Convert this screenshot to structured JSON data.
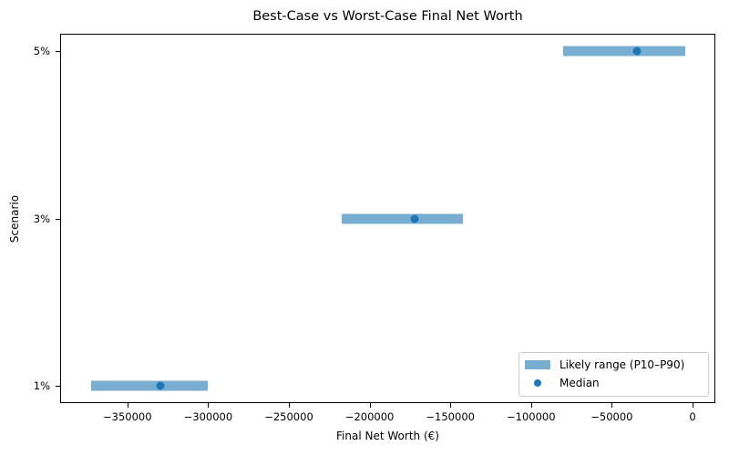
{
  "chart_data": {
    "type": "range",
    "title": "Best-Case vs Worst-Case Final Net Worth",
    "xlabel": "Final Net Worth (€)",
    "ylabel": "Scenario",
    "xlim": [
      -390000,
      14000
    ],
    "x_ticks": [
      -350000,
      -300000,
      -250000,
      -200000,
      -150000,
      -100000,
      -50000,
      0
    ],
    "x_tick_labels": [
      "−350000",
      "−300000",
      "−250000",
      "−200000",
      "−150000",
      "−100000",
      "−50000",
      "0"
    ],
    "categories": [
      "1%",
      "3%",
      "5%"
    ],
    "series": [
      {
        "name": "Likely range (P10–P90)",
        "kind": "range",
        "low": [
          -372500,
          -217300,
          -80100
        ],
        "high": [
          -300000,
          -142200,
          -4500
        ],
        "color": "#1f77b4",
        "alpha": 0.6
      },
      {
        "name": "Median",
        "kind": "scatter",
        "values": [
          -329500,
          -172100,
          -34400
        ],
        "color": "#1f77b4"
      }
    ],
    "legend": {
      "position": "lower right",
      "entries": [
        "Likely range (P10–P90)",
        "Median"
      ]
    },
    "grid": false
  },
  "labels": {
    "title": "Best-Case vs Worst-Case Final Net Worth",
    "xlabel": "Final Net Worth (€)",
    "ylabel": "Scenario",
    "legend_range": "Likely range (P10–P90)",
    "legend_median": "Median"
  }
}
